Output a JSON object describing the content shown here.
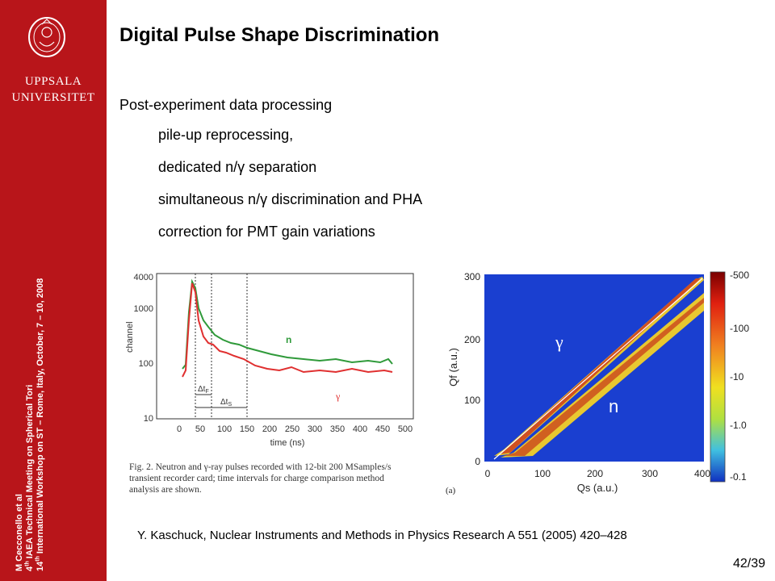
{
  "sidebar": {
    "logo_text_line1": "UPPSALA",
    "logo_text_line2": "UNIVERSITET",
    "credit_line1": "M Cecconello et al",
    "credit_line2_sup": "th",
    "credit_line2_pre": "4",
    "credit_line2_text": " IAEA Technical Meeting on Spherical Tori",
    "credit_line3_pre": "14",
    "credit_line3_sup": "th",
    "credit_line3_text": " International Workshop on ST – Rome, Italy, October, 7 – 10, 2008",
    "color": "#b8151a"
  },
  "slide": {
    "title": "Digital Pulse Shape Discrimination",
    "lead": "Post-experiment data processing",
    "bullets": [
      "pile-up reprocessing,",
      "dedicated n/γ separation",
      "simultaneous n/γ discrimination and PHA",
      "correction for PMT gain variations"
    ],
    "reference": "Y. Kaschuck, Nuclear Instruments and Methods in Physics Research A 551 (2005) 420–428",
    "page": "42/39"
  },
  "figure_left": {
    "caption": "Fig. 2. Neutron and γ-ray pulses recorded with 12-bit 200 MSamples/s transient recorder card; time intervals for charge comparison method analysis are shown.",
    "ylabel": "channel",
    "xlabel": "time (ns)",
    "label_n": "n",
    "label_gamma": "γ",
    "label_dtf": "Δt",
    "label_dtf_sub": "F",
    "label_dts": "Δt",
    "label_dts_sub": "S",
    "x_ticks": [
      "0",
      "50",
      "100",
      "150",
      "200",
      "250",
      "300",
      "350",
      "400",
      "450",
      "500"
    ],
    "y_ticks": [
      "4000",
      "1000",
      "100",
      "10"
    ]
  },
  "figure_right": {
    "xlabel": "Qs (a.u.)",
    "ylabel": "Qf (a.u.)",
    "panel_label": "(a)",
    "label_gamma": "γ",
    "label_n": "n",
    "x_ticks": [
      "0",
      "100",
      "200",
      "300",
      "400"
    ],
    "y_ticks": [
      "0",
      "100",
      "200",
      "300"
    ],
    "colorbar_ticks": [
      "-500",
      "-100",
      "-10",
      "-1.0",
      "-0.1"
    ]
  }
}
